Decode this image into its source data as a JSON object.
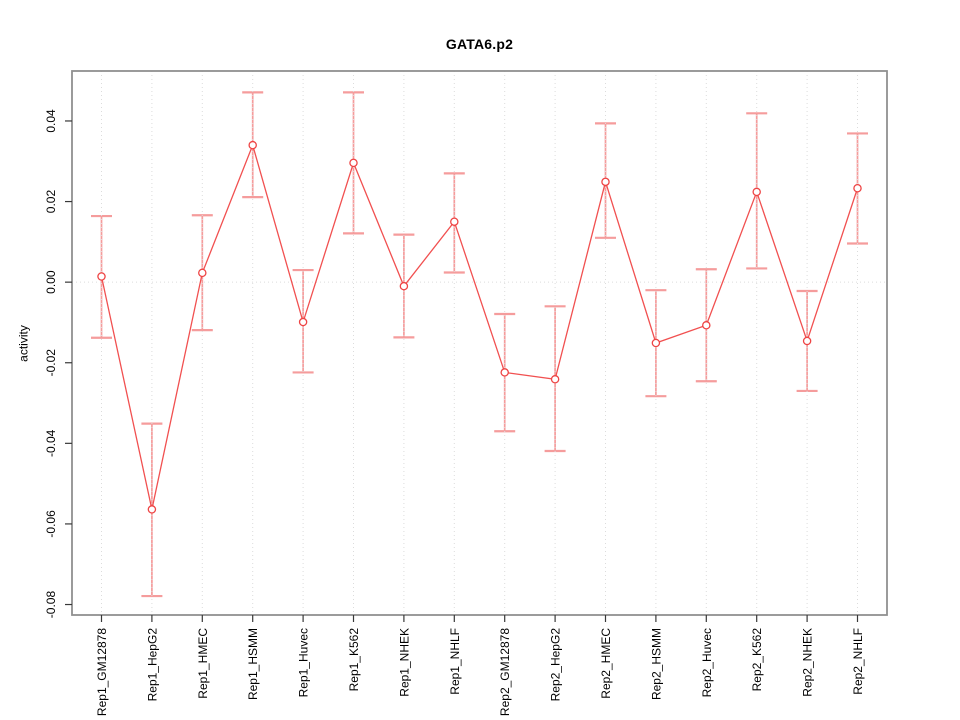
{
  "figure": {
    "title": "GATA6.p2",
    "ylabel": "activity"
  },
  "chart_data": {
    "type": "line",
    "title": "GATA6.p2",
    "xlabel": "",
    "ylabel": "activity",
    "categories": [
      "Rep1_GM12878",
      "Rep1_HepG2",
      "Rep1_HMEC",
      "Rep1_HSMM",
      "Rep1_Huvec",
      "Rep1_K562",
      "Rep1_NHEK",
      "Rep1_NHLF",
      "Rep2_GM12878",
      "Rep2_HepG2",
      "Rep2_HMEC",
      "Rep2_HSMM",
      "Rep2_Huvec",
      "Rep2_K562",
      "Rep2_NHEK",
      "Rep2_NHLF"
    ],
    "series": [
      {
        "name": "activity",
        "values": [
          0.0014,
          -0.0564,
          0.0023,
          0.034,
          -0.0099,
          0.0296,
          -0.001,
          0.015,
          -0.0224,
          -0.0241,
          0.0249,
          -0.0151,
          -0.0107,
          0.0224,
          -0.0146,
          0.0233
        ],
        "ci_high": [
          0.0164,
          -0.0351,
          0.0166,
          0.0471,
          0.003,
          0.0471,
          0.0118,
          0.027,
          -0.0079,
          -0.006,
          0.0394,
          -0.002,
          0.0032,
          0.0419,
          -0.0022,
          0.0369
        ],
        "ci_low": [
          -0.0138,
          -0.0779,
          -0.0119,
          0.0211,
          -0.0224,
          0.0121,
          -0.0137,
          0.0024,
          -0.037,
          -0.0419,
          0.011,
          -0.0283,
          -0.0246,
          0.0034,
          -0.027,
          0.0096
        ]
      }
    ],
    "yticks": [
      -0.08,
      -0.06,
      -0.04,
      -0.02,
      0,
      0.02,
      0.04
    ],
    "ytick_labels": [
      "-0.08",
      "-0.06",
      "-0.04",
      "-0.02",
      "0.00",
      "0.02",
      "0.04"
    ],
    "ylim": [
      -0.0826,
      0.0524
    ],
    "grid": {
      "vertical_dotted": true,
      "zero_line_dotted": true,
      "horizontal_lines": false
    },
    "legend": "none",
    "marker": "open-circle",
    "x_label_rotation_deg": 90,
    "y_label_rotation_deg": 90,
    "colors": {
      "line": "#f15050",
      "point_stroke": "#ee4444",
      "point_fill": "#ffffff",
      "error_bar": "#f59c9c",
      "grid": "#dcdcdc",
      "box": "#909090",
      "tick": "#383838",
      "text": "#000000",
      "background": "#ffffff"
    }
  }
}
